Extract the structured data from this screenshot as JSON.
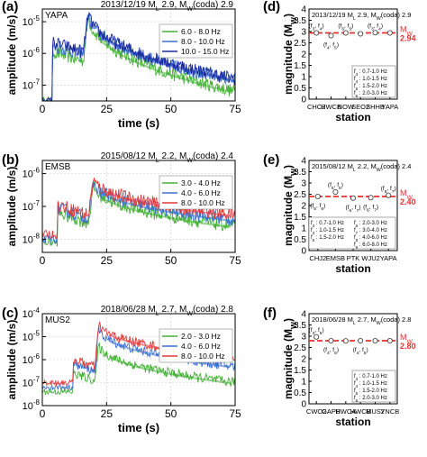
{
  "colors": {
    "green": "#44b035",
    "blue": "#3b6fd0",
    "navy": "#1a2aa0",
    "red": "#e23b3b",
    "mw_line": "#e8302f",
    "axis": "#000000",
    "grid": "#cfcfcf"
  },
  "chart_data": [
    {
      "panel": "(a)",
      "type": "line",
      "station": "YAPA",
      "event_text": "2013/12/19 ML 2.9, MW(coda) 2.9",
      "xlabel": "time (s)",
      "ylabel": "amplitude (m/s)",
      "xlim": [
        0,
        75
      ],
      "ylim_log10": [
        -7.5,
        -4.6
      ],
      "x_ticks": [
        "0",
        "25",
        "50",
        "75"
      ],
      "y_ticks": [
        {
          "label": "10^-7",
          "exp": -7
        },
        {
          "label": "10^-6",
          "exp": -6
        },
        {
          "label": "10^-5",
          "exp": -5
        }
      ],
      "grid": true,
      "legend_position": "upper-right",
      "series": [
        {
          "name": "6.0 - 8.0 Hz",
          "color": "green",
          "noise_log10": -7.5,
          "p_arrival_s": 4,
          "p_peak_log10": -5.95,
          "s_arrival_s": 18,
          "s_peak_log10": -4.75,
          "end_log10": -7.2
        },
        {
          "name": "8.0 - 10.0 Hz",
          "color": "blue",
          "noise_log10": -7.5,
          "p_arrival_s": 4,
          "p_peak_log10": -5.75,
          "s_arrival_s": 18,
          "s_peak_log10": -4.7,
          "end_log10": -6.85
        },
        {
          "name": "10.0 - 15.0 Hz",
          "color": "navy",
          "noise_log10": -7.5,
          "p_arrival_s": 4,
          "p_peak_log10": -5.65,
          "s_arrival_s": 18,
          "s_peak_log10": -4.65,
          "end_log10": -6.8
        }
      ]
    },
    {
      "panel": "(b)",
      "type": "line",
      "station": "EMSB",
      "event_text": "2015/08/12 ML 2.2, MW(coda) 2.4",
      "xlabel": "",
      "ylabel": "amplitude (m/s)",
      "xlim": [
        0,
        75
      ],
      "ylim_log10": [
        -8.4,
        -5.6
      ],
      "x_ticks": [
        "0",
        "25",
        "50",
        "75"
      ],
      "y_ticks": [
        {
          "label": "10^-8",
          "exp": -8
        },
        {
          "label": "10^-7",
          "exp": -7
        },
        {
          "label": "10^-6",
          "exp": -6
        }
      ],
      "grid": true,
      "legend_position": "upper-right",
      "series": [
        {
          "name": "3.0 - 4.0 Hz",
          "color": "green",
          "noise_log10": -8.1,
          "p_arrival_s": 6,
          "p_peak_log10": -7.2,
          "s_arrival_s": 20,
          "s_peak_log10": -6.35,
          "end_log10": -7.6
        },
        {
          "name": "4.0 - 6.0 Hz",
          "color": "blue",
          "noise_log10": -8.0,
          "p_arrival_s": 6,
          "p_peak_log10": -7.05,
          "s_arrival_s": 20,
          "s_peak_log10": -6.25,
          "end_log10": -7.4
        },
        {
          "name": "8.0 - 10.0 Hz",
          "color": "red",
          "noise_log10": -7.85,
          "p_arrival_s": 6,
          "p_peak_log10": -6.95,
          "s_arrival_s": 20,
          "s_peak_log10": -6.15,
          "end_log10": -7.25
        }
      ]
    },
    {
      "panel": "(c)",
      "type": "line",
      "station": "MUS2",
      "event_text": "2018/06/28 ML 2.7, MW(coda) 2.8",
      "xlabel": "time (s)",
      "ylabel": "amplitude (m/s)",
      "xlim": [
        0,
        75
      ],
      "ylim_log10": [
        -8,
        -4
      ],
      "x_ticks": [
        "0",
        "25",
        "50",
        "75"
      ],
      "y_ticks": [
        {
          "label": "10^-8",
          "exp": -8
        },
        {
          "label": "10^-7",
          "exp": -7
        },
        {
          "label": "10^-6",
          "exp": -6
        },
        {
          "label": "10^-5",
          "exp": -5
        },
        {
          "label": "10^-4",
          "exp": -4
        }
      ],
      "grid": true,
      "legend_position": "upper-right",
      "series": [
        {
          "name": "2.0 - 3.0 Hz",
          "color": "green",
          "noise_log10": -7.4,
          "p_arrival_s": 12,
          "p_peak_log10": -6.6,
          "s_arrival_s": 22,
          "s_peak_log10": -5.3,
          "end_log10": -7.0
        },
        {
          "name": "4.0 - 6.0 Hz",
          "color": "blue",
          "noise_log10": -7.2,
          "p_arrival_s": 12,
          "p_peak_log10": -6.2,
          "s_arrival_s": 22,
          "s_peak_log10": -4.6,
          "end_log10": -6.3
        },
        {
          "name": "8.0 - 10.0 Hz",
          "color": "red",
          "noise_log10": -7.0,
          "p_arrival_s": 12,
          "p_peak_log10": -6.0,
          "s_arrival_s": 22,
          "s_peak_log10": -4.4,
          "end_log10": -5.9
        }
      ]
    },
    {
      "panel": "(d)",
      "type": "scatter",
      "event_text": "2013/12/19 ML 2.9, MW(coda) 2.9",
      "xlabel": "station",
      "ylabel": "magnitude (MW)",
      "ylim": [
        0,
        4
      ],
      "y_ticks": [
        0,
        0.5,
        1,
        1.5,
        2,
        2.5,
        3,
        3.5,
        4
      ],
      "categories": [
        "CHC2",
        "HWCB",
        "NOW",
        "SEO2",
        "SHHB",
        "YAPA"
      ],
      "points": [
        {
          "station": "CHC2",
          "mw": 2.94
        },
        {
          "station": "HWCB",
          "mw": 2.82
        },
        {
          "station": "NOW",
          "mw": 2.94
        },
        {
          "station": "SEO2",
          "mw": 2.9
        },
        {
          "station": "SHHB",
          "mw": 2.95
        },
        {
          "station": "YAPA",
          "mw": 2.94
        }
      ],
      "annotations": [
        {
          "text": "(f3, f4)",
          "station": "CHC2",
          "pos": "above"
        },
        {
          "text": "(f4, f5)",
          "station": "HWCB",
          "pos": "below"
        },
        {
          "text": "(f6, f5)",
          "station": "NOW",
          "pos": "above"
        },
        {
          "text": "(f3, f4)",
          "station": "SHHB",
          "pos": "above"
        }
      ],
      "mw_average": 2.94,
      "mw_label": "MW",
      "mw_value_text": "2.94",
      "band_legend": [
        "f3 : 0.7-1.0 Hz",
        "f4 : 1.0-1.5 Hz",
        "f5 : 1.5-2.0 Hz",
        "f6 : 2.0-3.0 Hz"
      ]
    },
    {
      "panel": "(e)",
      "type": "scatter",
      "event_text": "2015/08/12 ML 2.2, MW(coda) 2.4",
      "xlabel": "station",
      "ylabel": "magnitude (MW)",
      "ylim": [
        0,
        4
      ],
      "y_ticks": [
        0,
        0.5,
        1,
        1.5,
        2,
        2.5,
        3,
        3.5,
        4
      ],
      "categories": [
        "CHJ2",
        "EMSB",
        "PTK",
        "WJU2",
        "YAPA"
      ],
      "points": [
        {
          "station": "CHJ2",
          "mw": 2.4
        },
        {
          "station": "EMSB",
          "mw": 2.6
        },
        {
          "station": "PTK",
          "mw": 2.33
        },
        {
          "station": "WJU2",
          "mw": 2.35
        },
        {
          "station": "YAPA",
          "mw": 2.45
        }
      ],
      "annotations": [
        {
          "text": "(f5, f6)",
          "station": "CHJ2",
          "pos": "below"
        },
        {
          "text": "(f6, f5)",
          "station": "EMSB",
          "pos": "above"
        },
        {
          "text": "(f6, f7)",
          "station": "PTK",
          "pos": "below"
        },
        {
          "text": "(f6, f7)",
          "station": "WJU2",
          "pos": "below"
        },
        {
          "text": "(f6, f7)",
          "station": "YAPA",
          "pos": "above"
        }
      ],
      "mw_average": 2.4,
      "mw_label": "MW",
      "mw_value_text": "2.40",
      "band_legend": [
        "f6 : 2.0-3.0 Hz",
        "f3 : 0.7-1.0 Hz",
        "f7 : 3.0-4.0 Hz",
        "f4 : 1.0-1.5 Hz",
        "f8 : 4.0-6.0 Hz",
        "f5 : 1.5-2.0 Hz",
        "f9 : 6.0-8.0 Hz"
      ]
    },
    {
      "panel": "(f)",
      "type": "scatter",
      "event_text": "2018/06/28 ML 2.7, MW(coda) 2.8",
      "xlabel": "station",
      "ylabel": "magnitude (MW)",
      "ylim": [
        0,
        4
      ],
      "y_ticks": [
        0,
        0.5,
        1,
        1.5,
        2,
        2.5,
        3,
        3.5,
        4
      ],
      "categories": [
        "CWO2",
        "GAPB",
        "HWCA",
        "HWCB",
        "MUS2",
        "YNCB"
      ],
      "points": [
        {
          "station": "CWO2",
          "mw": 2.97
        },
        {
          "station": "GAPB",
          "mw": 2.8
        },
        {
          "station": "HWCA",
          "mw": 2.79
        },
        {
          "station": "HWCB",
          "mw": 2.8
        },
        {
          "station": "MUS2",
          "mw": 2.8
        },
        {
          "station": "YNCB",
          "mw": 2.8
        }
      ],
      "annotations": [
        {
          "text": "(f3, f5)",
          "station": "CWO2",
          "pos": "above"
        },
        {
          "text": "(f4, f5)",
          "station": "GAPB",
          "pos": "below"
        },
        {
          "text": "(f4, f5)",
          "station": "HWCB",
          "pos": "below"
        }
      ],
      "mw_average": 2.8,
      "mw_label": "MW",
      "mw_value_text": "2.80",
      "band_legend": [
        "f3 : 0.7-1.0 Hz",
        "f4 : 1.0-1.5 Hz",
        "f5 : 1.5-2.0 Hz",
        "f6 : 2.0-3.0 Hz"
      ]
    }
  ]
}
